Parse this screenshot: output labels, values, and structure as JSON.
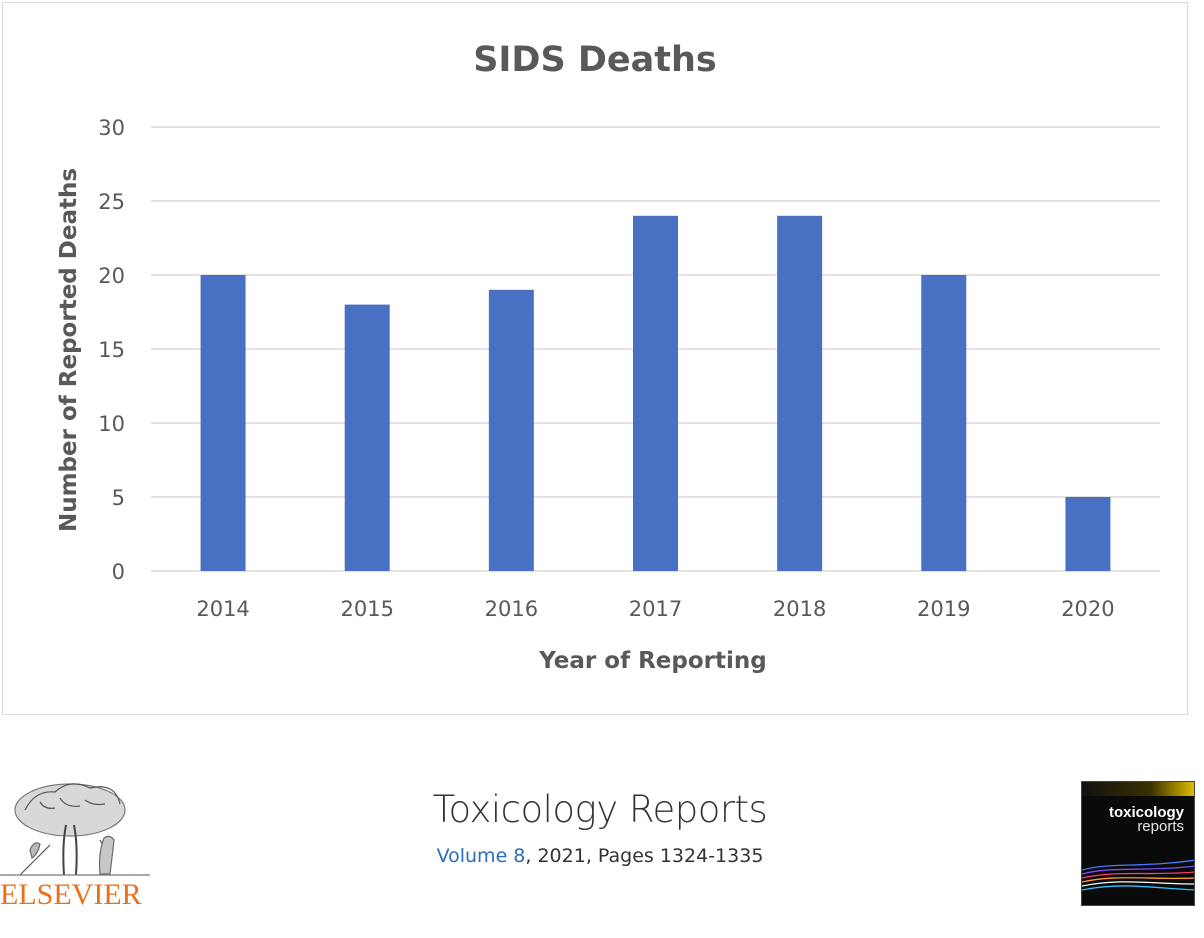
{
  "chart_data": {
    "type": "bar",
    "title": "SIDS Deaths",
    "xlabel": "Year of Reporting",
    "ylabel": "Number of Reported Deaths",
    "categories": [
      "2014",
      "2015",
      "2016",
      "2017",
      "2018",
      "2019",
      "2020"
    ],
    "values": [
      20,
      18,
      19,
      24,
      24,
      20,
      5
    ],
    "ylim": [
      0,
      30
    ],
    "yticks": [
      0,
      5,
      10,
      15,
      20,
      25,
      30
    ],
    "grid": true,
    "legend": "none",
    "colors": {
      "bar": "#4a70c3",
      "grid": "#d9d9d9",
      "text": "#595959"
    }
  },
  "footer": {
    "publisher_logo": "ELSEVIER",
    "journal_name": "Toxicology Reports",
    "volume_link": "Volume 8",
    "citation_rest": ", 2021, Pages 1324-1335",
    "cover_line1": "toxicology",
    "cover_line2": "reports"
  }
}
